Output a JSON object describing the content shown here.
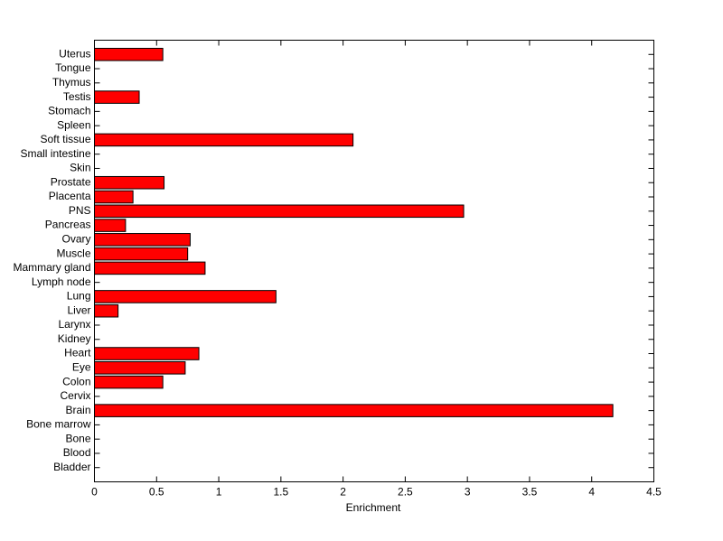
{
  "chart_data": {
    "type": "bar",
    "orientation": "horizontal",
    "x_label": "Enrichment",
    "categories": [
      "Bladder",
      "Blood",
      "Bone",
      "Bone marrow",
      "Brain",
      "Cervix",
      "Colon",
      "Eye",
      "Heart",
      "Kidney",
      "Larynx",
      "Liver",
      "Lung",
      "Lymph node",
      "Mammary gland",
      "Muscle",
      "Ovary",
      "Pancreas",
      "PNS",
      "Placenta",
      "Prostate",
      "Skin",
      "Small intestine",
      "Soft tissue",
      "Spleen",
      "Stomach",
      "Testis",
      "Thymus",
      "Tongue",
      "Uterus"
    ],
    "values": [
      0,
      0,
      0,
      0,
      4.17,
      0,
      0.55,
      0.73,
      0.84,
      0,
      0,
      0.19,
      1.46,
      0,
      0.89,
      0.75,
      0.77,
      0.25,
      2.97,
      0.31,
      0.56,
      0,
      0,
      2.08,
      0,
      0,
      0.36,
      0,
      0,
      0.55
    ],
    "color": "#ff0000",
    "xlim": [
      0,
      4.5
    ],
    "xticks": [
      0,
      0.5,
      1,
      1.5,
      2,
      2.5,
      3,
      3.5,
      4,
      4.5
    ]
  }
}
